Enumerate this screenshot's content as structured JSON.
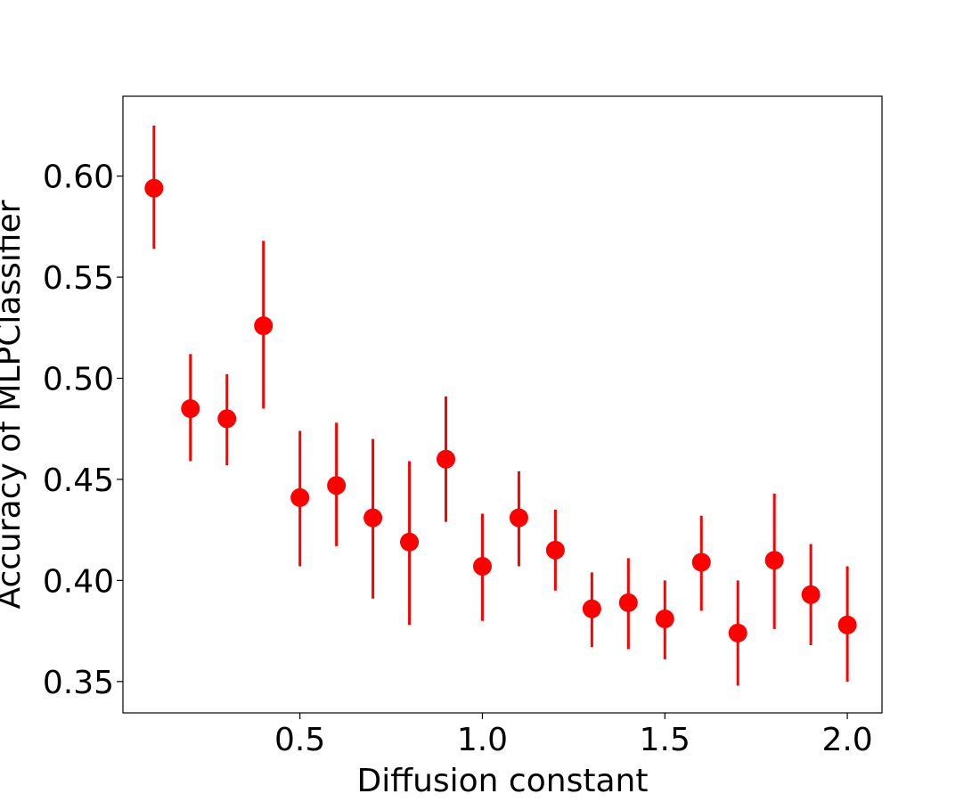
{
  "chart_data": {
    "type": "scatter",
    "title": "",
    "xlabel": "Diffusion constant",
    "ylabel": "Accuracy of MLPClassifier",
    "xlim": [
      0.015,
      2.095
    ],
    "ylim": [
      0.3345,
      0.6395
    ],
    "x_ticks": [
      0.5,
      1.0,
      1.5,
      2.0
    ],
    "x_tick_labels": [
      "0.5",
      "1.0",
      "1.5",
      "2.0"
    ],
    "y_ticks": [
      0.35,
      0.4,
      0.45,
      0.5,
      0.55,
      0.6
    ],
    "y_tick_labels": [
      "0.35",
      "0.40",
      "0.45",
      "0.50",
      "0.55",
      "0.60"
    ],
    "grid": false,
    "legend": "none",
    "color": "#ff0000",
    "series": [
      {
        "x": [
          0.1,
          0.2,
          0.3,
          0.4,
          0.5,
          0.6,
          0.7,
          0.8,
          0.9,
          1.0,
          1.1,
          1.2,
          1.3,
          1.4,
          1.5,
          1.6,
          1.7,
          1.8,
          1.9,
          2.0
        ],
        "y": [
          0.594,
          0.485,
          0.48,
          0.526,
          0.441,
          0.447,
          0.431,
          0.419,
          0.46,
          0.407,
          0.431,
          0.415,
          0.386,
          0.389,
          0.381,
          0.409,
          0.374,
          0.41,
          0.393,
          0.378
        ],
        "yerr_low": [
          0.564,
          0.459,
          0.457,
          0.485,
          0.407,
          0.417,
          0.391,
          0.378,
          0.429,
          0.38,
          0.407,
          0.395,
          0.367,
          0.366,
          0.361,
          0.385,
          0.348,
          0.376,
          0.368,
          0.35
        ],
        "yerr_high": [
          0.625,
          0.512,
          0.502,
          0.568,
          0.474,
          0.478,
          0.47,
          0.459,
          0.491,
          0.433,
          0.454,
          0.435,
          0.404,
          0.411,
          0.4,
          0.432,
          0.4,
          0.443,
          0.418,
          0.407
        ]
      }
    ]
  }
}
